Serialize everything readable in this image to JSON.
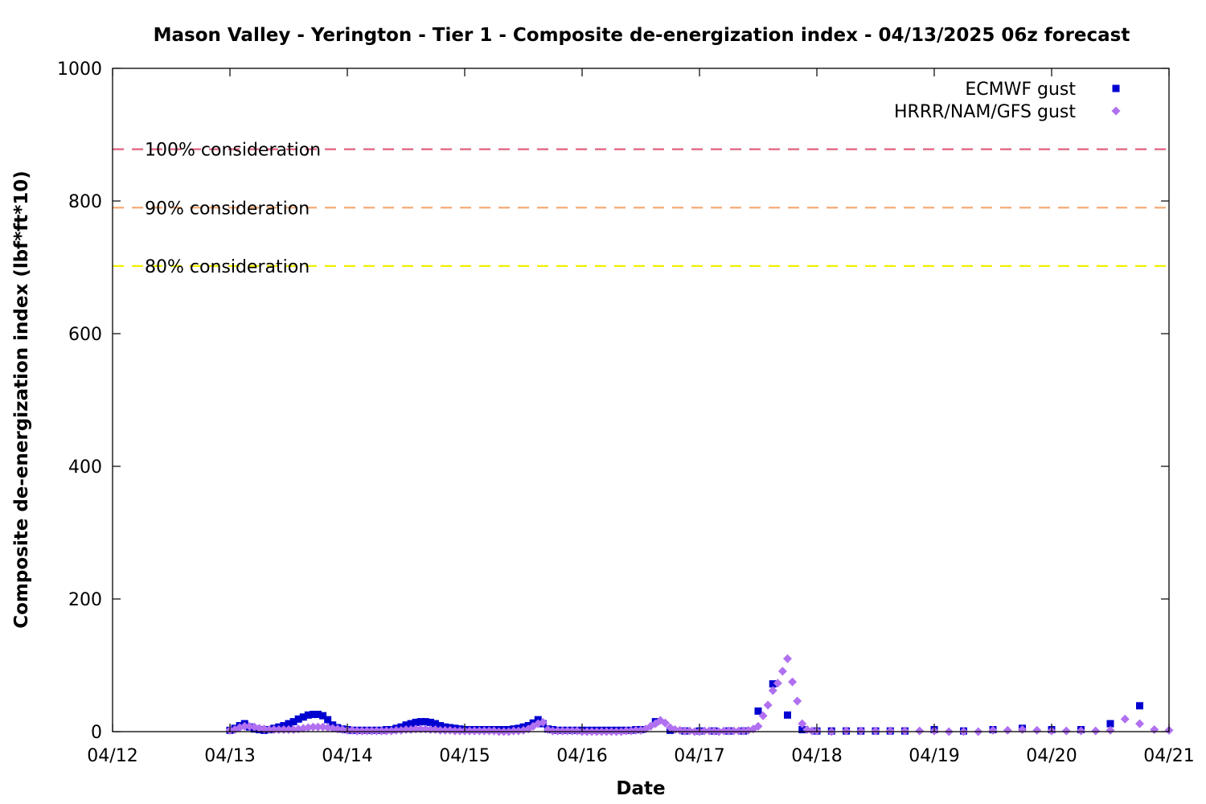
{
  "chart_data": {
    "type": "scatter",
    "title": "Mason Valley - Yerington - Tier 1 - Composite de-energization index - 04/13/2025 06z forecast",
    "xlabel": "Date",
    "ylabel": "Composite de-energization index (lbf*ft*10)",
    "xlim": [
      "2025-04-12T00:00",
      "2025-04-21T00:00"
    ],
    "ylim": [
      0,
      1000
    ],
    "x_ticks": [
      "04/12",
      "04/13",
      "04/14",
      "04/15",
      "04/16",
      "04/17",
      "04/18",
      "04/19",
      "04/20",
      "04/21"
    ],
    "y_ticks": [
      0,
      200,
      400,
      600,
      800,
      1000
    ],
    "grid": false,
    "legend_position": "top-right",
    "thresholds": [
      {
        "label": "100% consideration",
        "value": 878,
        "color": "#e0607e"
      },
      {
        "label": "90% consideration",
        "value": 790,
        "color": "#f5ab78"
      },
      {
        "label": "80% consideration",
        "value": 702,
        "color": "#f0f000"
      }
    ],
    "series": [
      {
        "name": "ECMWF gust",
        "marker": "square",
        "color": "#0000d0",
        "points": [
          [
            "2025-04-13T00:00",
            2
          ],
          [
            "2025-04-13T01:00",
            5
          ],
          [
            "2025-04-13T02:00",
            9
          ],
          [
            "2025-04-13T03:00",
            12
          ],
          [
            "2025-04-13T04:00",
            7
          ],
          [
            "2025-04-13T05:00",
            4
          ],
          [
            "2025-04-13T06:00",
            3
          ],
          [
            "2025-04-13T07:00",
            2
          ],
          [
            "2025-04-13T08:00",
            3
          ],
          [
            "2025-04-13T09:00",
            5
          ],
          [
            "2025-04-13T10:00",
            7
          ],
          [
            "2025-04-13T11:00",
            9
          ],
          [
            "2025-04-13T12:00",
            12
          ],
          [
            "2025-04-13T13:00",
            15
          ],
          [
            "2025-04-13T14:00",
            19
          ],
          [
            "2025-04-13T15:00",
            22
          ],
          [
            "2025-04-13T16:00",
            25
          ],
          [
            "2025-04-13T17:00",
            26
          ],
          [
            "2025-04-13T18:00",
            26
          ],
          [
            "2025-04-13T19:00",
            24
          ],
          [
            "2025-04-13T20:00",
            18
          ],
          [
            "2025-04-13T21:00",
            10
          ],
          [
            "2025-04-13T22:00",
            6
          ],
          [
            "2025-04-13T23:00",
            4
          ],
          [
            "2025-04-14T00:00",
            3
          ],
          [
            "2025-04-14T01:00",
            2
          ],
          [
            "2025-04-14T02:00",
            2
          ],
          [
            "2025-04-14T03:00",
            2
          ],
          [
            "2025-04-14T04:00",
            2
          ],
          [
            "2025-04-14T05:00",
            2
          ],
          [
            "2025-04-14T06:00",
            2
          ],
          [
            "2025-04-14T07:00",
            2
          ],
          [
            "2025-04-14T08:00",
            3
          ],
          [
            "2025-04-14T09:00",
            3
          ],
          [
            "2025-04-14T10:00",
            5
          ],
          [
            "2025-04-14T11:00",
            7
          ],
          [
            "2025-04-14T12:00",
            10
          ],
          [
            "2025-04-14T13:00",
            12
          ],
          [
            "2025-04-14T14:00",
            14
          ],
          [
            "2025-04-14T15:00",
            15
          ],
          [
            "2025-04-14T16:00",
            15
          ],
          [
            "2025-04-14T17:00",
            14
          ],
          [
            "2025-04-14T18:00",
            12
          ],
          [
            "2025-04-14T19:00",
            9
          ],
          [
            "2025-04-14T20:00",
            7
          ],
          [
            "2025-04-14T21:00",
            6
          ],
          [
            "2025-04-14T22:00",
            5
          ],
          [
            "2025-04-14T23:00",
            4
          ],
          [
            "2025-04-15T00:00",
            3
          ],
          [
            "2025-04-15T01:00",
            3
          ],
          [
            "2025-04-15T02:00",
            3
          ],
          [
            "2025-04-15T03:00",
            3
          ],
          [
            "2025-04-15T04:00",
            3
          ],
          [
            "2025-04-15T05:00",
            3
          ],
          [
            "2025-04-15T06:00",
            3
          ],
          [
            "2025-04-15T07:00",
            3
          ],
          [
            "2025-04-15T08:00",
            3
          ],
          [
            "2025-04-15T09:00",
            3
          ],
          [
            "2025-04-15T10:00",
            4
          ],
          [
            "2025-04-15T11:00",
            5
          ],
          [
            "2025-04-15T12:00",
            7
          ],
          [
            "2025-04-15T13:00",
            9
          ],
          [
            "2025-04-15T14:00",
            13
          ],
          [
            "2025-04-15T15:00",
            18
          ],
          [
            "2025-04-15T16:00",
            12
          ],
          [
            "2025-04-15T17:00",
            4
          ],
          [
            "2025-04-15T18:00",
            3
          ],
          [
            "2025-04-15T19:00",
            2
          ],
          [
            "2025-04-15T20:00",
            2
          ],
          [
            "2025-04-15T21:00",
            2
          ],
          [
            "2025-04-15T22:00",
            2
          ],
          [
            "2025-04-15T23:00",
            2
          ],
          [
            "2025-04-16T00:00",
            2
          ],
          [
            "2025-04-16T01:00",
            2
          ],
          [
            "2025-04-16T02:00",
            2
          ],
          [
            "2025-04-16T03:00",
            2
          ],
          [
            "2025-04-16T04:00",
            2
          ],
          [
            "2025-04-16T05:00",
            2
          ],
          [
            "2025-04-16T06:00",
            2
          ],
          [
            "2025-04-16T07:00",
            2
          ],
          [
            "2025-04-16T08:00",
            2
          ],
          [
            "2025-04-16T09:00",
            2
          ],
          [
            "2025-04-16T10:00",
            2
          ],
          [
            "2025-04-16T11:00",
            3
          ],
          [
            "2025-04-16T12:00",
            3
          ],
          [
            "2025-04-16T15:00",
            15
          ],
          [
            "2025-04-16T18:00",
            2
          ],
          [
            "2025-04-16T21:00",
            1
          ],
          [
            "2025-04-17T00:00",
            1
          ],
          [
            "2025-04-17T03:00",
            1
          ],
          [
            "2025-04-17T06:00",
            1
          ],
          [
            "2025-04-17T09:00",
            1
          ],
          [
            "2025-04-17T12:00",
            31
          ],
          [
            "2025-04-17T15:00",
            72
          ],
          [
            "2025-04-17T18:00",
            25
          ],
          [
            "2025-04-17T21:00",
            3
          ],
          [
            "2025-04-18T00:00",
            1
          ],
          [
            "2025-04-18T03:00",
            1
          ],
          [
            "2025-04-18T06:00",
            1
          ],
          [
            "2025-04-18T09:00",
            1
          ],
          [
            "2025-04-18T12:00",
            1
          ],
          [
            "2025-04-18T15:00",
            1
          ],
          [
            "2025-04-18T18:00",
            1
          ],
          [
            "2025-04-19T00:00",
            3
          ],
          [
            "2025-04-19T06:00",
            1
          ],
          [
            "2025-04-19T12:00",
            3
          ],
          [
            "2025-04-19T18:00",
            5
          ],
          [
            "2025-04-20T00:00",
            3
          ],
          [
            "2025-04-20T06:00",
            3
          ],
          [
            "2025-04-20T12:00",
            12
          ],
          [
            "2025-04-20T18:00",
            39
          ]
        ]
      },
      {
        "name": "HRRR/NAM/GFS gust",
        "marker": "diamond",
        "color": "#b070f0",
        "points": [
          [
            "2025-04-13T00:00",
            2
          ],
          [
            "2025-04-13T01:00",
            3
          ],
          [
            "2025-04-13T02:00",
            6
          ],
          [
            "2025-04-13T03:00",
            8
          ],
          [
            "2025-04-13T04:00",
            8
          ],
          [
            "2025-04-13T05:00",
            7
          ],
          [
            "2025-04-13T06:00",
            5
          ],
          [
            "2025-04-13T07:00",
            4
          ],
          [
            "2025-04-13T08:00",
            3
          ],
          [
            "2025-04-13T09:00",
            3
          ],
          [
            "2025-04-13T10:00",
            3
          ],
          [
            "2025-04-13T11:00",
            3
          ],
          [
            "2025-04-13T12:00",
            3
          ],
          [
            "2025-04-13T13:00",
            3
          ],
          [
            "2025-04-13T14:00",
            4
          ],
          [
            "2025-04-13T15:00",
            5
          ],
          [
            "2025-04-13T16:00",
            6
          ],
          [
            "2025-04-13T17:00",
            7
          ],
          [
            "2025-04-13T18:00",
            7
          ],
          [
            "2025-04-13T19:00",
            7
          ],
          [
            "2025-04-13T20:00",
            6
          ],
          [
            "2025-04-13T21:00",
            5
          ],
          [
            "2025-04-13T22:00",
            4
          ],
          [
            "2025-04-13T23:00",
            3
          ],
          [
            "2025-04-14T00:00",
            2
          ],
          [
            "2025-04-14T01:00",
            2
          ],
          [
            "2025-04-14T02:00",
            1
          ],
          [
            "2025-04-14T03:00",
            1
          ],
          [
            "2025-04-14T04:00",
            1
          ],
          [
            "2025-04-14T05:00",
            1
          ],
          [
            "2025-04-14T06:00",
            1
          ],
          [
            "2025-04-14T07:00",
            1
          ],
          [
            "2025-04-14T08:00",
            1
          ],
          [
            "2025-04-14T09:00",
            1
          ],
          [
            "2025-04-14T10:00",
            2
          ],
          [
            "2025-04-14T11:00",
            2
          ],
          [
            "2025-04-14T12:00",
            3
          ],
          [
            "2025-04-14T13:00",
            3
          ],
          [
            "2025-04-14T14:00",
            4
          ],
          [
            "2025-04-14T15:00",
            4
          ],
          [
            "2025-04-14T16:00",
            4
          ],
          [
            "2025-04-14T17:00",
            3
          ],
          [
            "2025-04-14T18:00",
            3
          ],
          [
            "2025-04-14T19:00",
            2
          ],
          [
            "2025-04-14T20:00",
            2
          ],
          [
            "2025-04-14T21:00",
            2
          ],
          [
            "2025-04-14T22:00",
            1
          ],
          [
            "2025-04-14T23:00",
            1
          ],
          [
            "2025-04-15T00:00",
            1
          ],
          [
            "2025-04-15T01:00",
            1
          ],
          [
            "2025-04-15T02:00",
            1
          ],
          [
            "2025-04-15T03:00",
            1
          ],
          [
            "2025-04-15T04:00",
            1
          ],
          [
            "2025-04-15T05:00",
            1
          ],
          [
            "2025-04-15T06:00",
            1
          ],
          [
            "2025-04-15T07:00",
            0
          ],
          [
            "2025-04-15T08:00",
            0
          ],
          [
            "2025-04-15T09:00",
            0
          ],
          [
            "2025-04-15T10:00",
            1
          ],
          [
            "2025-04-15T11:00",
            1
          ],
          [
            "2025-04-15T12:00",
            2
          ],
          [
            "2025-04-15T13:00",
            4
          ],
          [
            "2025-04-15T14:00",
            8
          ],
          [
            "2025-04-15T15:00",
            12
          ],
          [
            "2025-04-15T16:00",
            14
          ],
          [
            "2025-04-15T17:00",
            3
          ],
          [
            "2025-04-15T18:00",
            1
          ],
          [
            "2025-04-15T19:00",
            1
          ],
          [
            "2025-04-15T20:00",
            1
          ],
          [
            "2025-04-15T21:00",
            1
          ],
          [
            "2025-04-15T22:00",
            1
          ],
          [
            "2025-04-15T23:00",
            1
          ],
          [
            "2025-04-16T00:00",
            0
          ],
          [
            "2025-04-16T01:00",
            0
          ],
          [
            "2025-04-16T02:00",
            0
          ],
          [
            "2025-04-16T03:00",
            0
          ],
          [
            "2025-04-16T04:00",
            0
          ],
          [
            "2025-04-16T05:00",
            0
          ],
          [
            "2025-04-16T06:00",
            0
          ],
          [
            "2025-04-16T07:00",
            0
          ],
          [
            "2025-04-16T08:00",
            0
          ],
          [
            "2025-04-16T09:00",
            1
          ],
          [
            "2025-04-16T10:00",
            1
          ],
          [
            "2025-04-16T11:00",
            2
          ],
          [
            "2025-04-16T12:00",
            2
          ],
          [
            "2025-04-16T13:00",
            4
          ],
          [
            "2025-04-16T14:00",
            8
          ],
          [
            "2025-04-16T15:00",
            12
          ],
          [
            "2025-04-16T16:00",
            17
          ],
          [
            "2025-04-16T17:00",
            13
          ],
          [
            "2025-04-16T18:00",
            6
          ],
          [
            "2025-04-16T19:00",
            3
          ],
          [
            "2025-04-16T20:00",
            2
          ],
          [
            "2025-04-16T21:00",
            1
          ],
          [
            "2025-04-16T22:00",
            1
          ],
          [
            "2025-04-16T23:00",
            0
          ],
          [
            "2025-04-17T00:00",
            0
          ],
          [
            "2025-04-17T01:00",
            1
          ],
          [
            "2025-04-17T02:00",
            1
          ],
          [
            "2025-04-17T03:00",
            1
          ],
          [
            "2025-04-17T04:00",
            0
          ],
          [
            "2025-04-17T05:00",
            1
          ],
          [
            "2025-04-17T06:00",
            1
          ],
          [
            "2025-04-17T07:00",
            1
          ],
          [
            "2025-04-17T08:00",
            1
          ],
          [
            "2025-04-17T09:00",
            1
          ],
          [
            "2025-04-17T10:00",
            2
          ],
          [
            "2025-04-17T11:00",
            4
          ],
          [
            "2025-04-17T12:00",
            8
          ],
          [
            "2025-04-17T13:00",
            24
          ],
          [
            "2025-04-17T14:00",
            40
          ],
          [
            "2025-04-17T15:00",
            62
          ],
          [
            "2025-04-17T16:00",
            73
          ],
          [
            "2025-04-17T17:00",
            91
          ],
          [
            "2025-04-17T18:00",
            110
          ],
          [
            "2025-04-17T19:00",
            75
          ],
          [
            "2025-04-17T20:00",
            46
          ],
          [
            "2025-04-17T21:00",
            12
          ],
          [
            "2025-04-17T22:00",
            3
          ],
          [
            "2025-04-17T23:00",
            1
          ],
          [
            "2025-04-18T00:00",
            1
          ],
          [
            "2025-04-18T03:00",
            0
          ],
          [
            "2025-04-18T06:00",
            1
          ],
          [
            "2025-04-18T09:00",
            1
          ],
          [
            "2025-04-18T12:00",
            1
          ],
          [
            "2025-04-18T15:00",
            1
          ],
          [
            "2025-04-18T18:00",
            1
          ],
          [
            "2025-04-18T21:00",
            1
          ],
          [
            "2025-04-19T00:00",
            1
          ],
          [
            "2025-04-19T03:00",
            0
          ],
          [
            "2025-04-19T06:00",
            0
          ],
          [
            "2025-04-19T09:00",
            0
          ],
          [
            "2025-04-19T12:00",
            2
          ],
          [
            "2025-04-19T15:00",
            2
          ],
          [
            "2025-04-19T18:00",
            3
          ],
          [
            "2025-04-19T21:00",
            2
          ],
          [
            "2025-04-20T00:00",
            1
          ],
          [
            "2025-04-20T03:00",
            1
          ],
          [
            "2025-04-20T06:00",
            1
          ],
          [
            "2025-04-20T09:00",
            1
          ],
          [
            "2025-04-20T12:00",
            2
          ],
          [
            "2025-04-20T15:00",
            19
          ],
          [
            "2025-04-20T18:00",
            12
          ],
          [
            "2025-04-20T21:00",
            3
          ],
          [
            "2025-04-21T00:00",
            2
          ]
        ]
      }
    ]
  }
}
